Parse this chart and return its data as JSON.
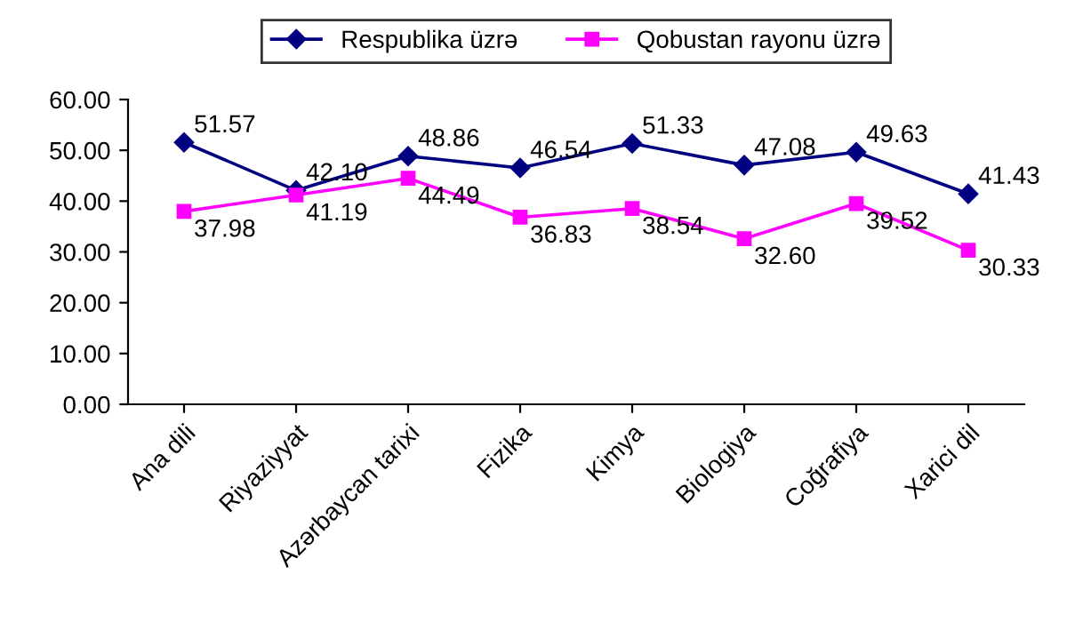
{
  "chart_data": {
    "type": "line",
    "categories": [
      "Ana dili",
      "Riyaziyyat",
      "Azərbaycan tarixi",
      "Fizika",
      "Kimya",
      "Biologiya",
      "Coğrafiya",
      "Xarici dil"
    ],
    "series": [
      {
        "name": "Respublika üzrə",
        "color": "#000080",
        "marker": "diamond",
        "values": [
          51.57,
          42.1,
          48.86,
          46.54,
          51.33,
          47.08,
          49.63,
          41.43
        ],
        "value_labels": [
          "51.57",
          "42.10",
          "48.86",
          "46.54",
          "51.33",
          "47.08",
          "49.63",
          "41.43"
        ]
      },
      {
        "name": "Qobustan rayonu üzrə",
        "color": "#ff00ff",
        "marker": "square",
        "values": [
          37.98,
          41.19,
          44.49,
          36.83,
          38.54,
          32.6,
          39.52,
          30.33
        ],
        "value_labels": [
          "37.98",
          "41.19",
          "44.49",
          "36.83",
          "38.54",
          "32.60",
          "39.52",
          "30.33"
        ]
      }
    ],
    "ylim": [
      0,
      60
    ],
    "yticks": [
      {
        "value": 0,
        "label": "0.00"
      },
      {
        "value": 10,
        "label": "10.00"
      },
      {
        "value": 20,
        "label": "20.00"
      },
      {
        "value": 30,
        "label": "30.00"
      },
      {
        "value": 40,
        "label": "40.00"
      },
      {
        "value": 50,
        "label": "50.00"
      },
      {
        "value": 60,
        "label": "60.00"
      }
    ],
    "grid": false,
    "legend": "top",
    "line_style": "solid"
  }
}
